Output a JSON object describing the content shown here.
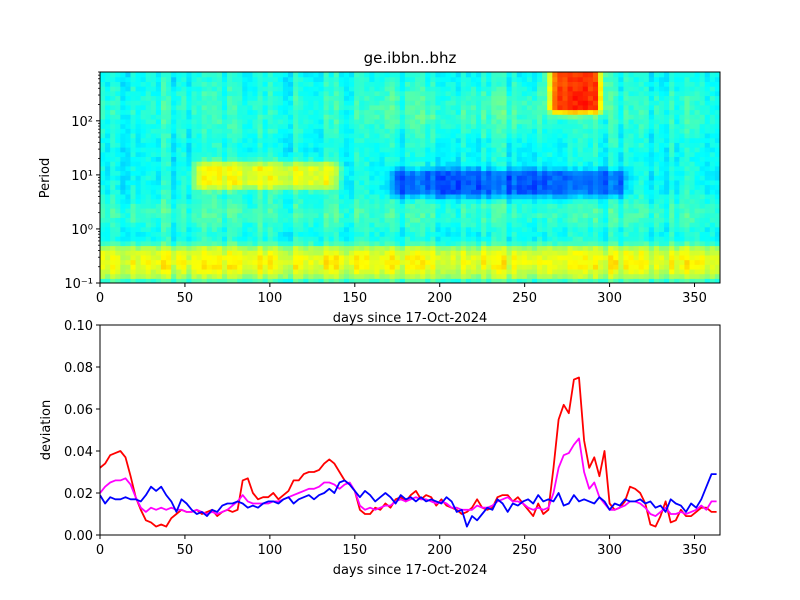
{
  "chart_data": [
    {
      "type": "heatmap",
      "title": "ge.ibbn..bhz",
      "xlabel": "days since 17-Oct-2024",
      "ylabel": "Period",
      "xlim": [
        0,
        365
      ],
      "ylim": [
        0.1,
        800
      ],
      "yscale": "log",
      "xticks": [
        0,
        50,
        100,
        150,
        200,
        250,
        300,
        350
      ],
      "xtick_labels": [
        "0",
        "50",
        "100",
        "150",
        "200",
        "250",
        "300",
        "350"
      ],
      "yticks": [
        0.1,
        1,
        10,
        100
      ],
      "ytick_labels": [
        "10⁻¹",
        "10⁰",
        "10¹",
        "10²"
      ],
      "colormap": "jet",
      "colormap_stops": [
        "#000080",
        "#0000ff",
        "#0080ff",
        "#00ffff",
        "#80ff80",
        "#ffff00",
        "#ff8000",
        "#ff0000",
        "#800000"
      ],
      "color_range": [
        0,
        1
      ],
      "baseline_value": 0.38,
      "features": [
        {
          "desc": "warm band at ~10 s",
          "x": [
            60,
            135
          ],
          "y": [
            7,
            14
          ],
          "value": 0.62
        },
        {
          "desc": "cool band at ~7 s",
          "x": [
            175,
            305
          ],
          "y": [
            5,
            10
          ],
          "value": 0.2
        },
        {
          "desc": "hot spot long period",
          "x": [
            270,
            290
          ],
          "y": [
            180,
            800
          ],
          "value": 0.85
        },
        {
          "desc": "short period yellow band",
          "x": [
            0,
            365
          ],
          "y": [
            0.15,
            0.4
          ],
          "value": 0.55
        }
      ]
    },
    {
      "type": "line",
      "title": "",
      "xlabel": "days since 17-Oct-2024",
      "ylabel": "deviation",
      "xlim": [
        0,
        365
      ],
      "ylim": [
        0.0,
        0.1
      ],
      "xticks": [
        0,
        50,
        100,
        150,
        200,
        250,
        300,
        350
      ],
      "xtick_labels": [
        "0",
        "50",
        "100",
        "150",
        "200",
        "250",
        "300",
        "350"
      ],
      "yticks": [
        0.0,
        0.02,
        0.04,
        0.06,
        0.08,
        0.1
      ],
      "ytick_labels": [
        "0.00",
        "0.02",
        "0.04",
        "0.06",
        "0.08",
        "0.10"
      ],
      "series": [
        {
          "name": "red",
          "color": "#ff0000",
          "x": [
            0,
            3,
            6,
            9,
            12,
            15,
            18,
            21,
            24,
            27,
            30,
            33,
            36,
            39,
            42,
            45,
            48,
            51,
            54,
            57,
            60,
            63,
            66,
            69,
            72,
            75,
            78,
            81,
            84,
            87,
            90,
            93,
            96,
            99,
            102,
            105,
            108,
            111,
            114,
            117,
            120,
            123,
            126,
            129,
            132,
            135,
            138,
            141,
            144,
            147,
            150,
            153,
            156,
            159,
            162,
            165,
            168,
            171,
            174,
            177,
            180,
            183,
            186,
            189,
            192,
            195,
            198,
            201,
            204,
            207,
            210,
            213,
            216,
            219,
            222,
            225,
            228,
            231,
            234,
            237,
            240,
            243,
            246,
            249,
            252,
            255,
            258,
            261,
            264,
            267,
            270,
            273,
            276,
            279,
            282,
            285,
            288,
            291,
            294,
            297,
            300,
            303,
            306,
            309,
            312,
            315,
            318,
            321,
            324,
            327,
            330,
            333,
            336,
            339,
            342,
            345,
            348,
            351,
            354,
            357,
            360,
            363
          ],
          "y": [
            0.032,
            0.034,
            0.038,
            0.039,
            0.04,
            0.037,
            0.028,
            0.018,
            0.012,
            0.007,
            0.006,
            0.004,
            0.005,
            0.004,
            0.008,
            0.01,
            0.012,
            0.011,
            0.011,
            0.012,
            0.01,
            0.011,
            0.012,
            0.009,
            0.011,
            0.012,
            0.011,
            0.012,
            0.026,
            0.027,
            0.02,
            0.017,
            0.018,
            0.018,
            0.02,
            0.017,
            0.019,
            0.021,
            0.026,
            0.026,
            0.029,
            0.03,
            0.03,
            0.031,
            0.034,
            0.036,
            0.034,
            0.03,
            0.026,
            0.024,
            0.021,
            0.012,
            0.01,
            0.01,
            0.013,
            0.012,
            0.015,
            0.013,
            0.017,
            0.018,
            0.016,
            0.019,
            0.021,
            0.017,
            0.019,
            0.018,
            0.014,
            0.017,
            0.014,
            0.013,
            0.012,
            0.01,
            0.011,
            0.013,
            0.017,
            0.013,
            0.012,
            0.013,
            0.018,
            0.019,
            0.019,
            0.016,
            0.018,
            0.015,
            0.012,
            0.009,
            0.015,
            0.01,
            0.012,
            0.032,
            0.055,
            0.062,
            0.058,
            0.074,
            0.075,
            0.045,
            0.032,
            0.037,
            0.028,
            0.04,
            0.015,
            0.012,
            0.013,
            0.016,
            0.023,
            0.022,
            0.02,
            0.015,
            0.005,
            0.004,
            0.009,
            0.016,
            0.006,
            0.007,
            0.012,
            0.009,
            0.009,
            0.011,
            0.013,
            0.013,
            0.011,
            0.011
          ]
        },
        {
          "name": "magenta",
          "color": "#ff00ff",
          "x": [
            0,
            3,
            6,
            9,
            12,
            15,
            18,
            21,
            24,
            27,
            30,
            33,
            36,
            39,
            42,
            45,
            48,
            51,
            54,
            57,
            60,
            63,
            66,
            69,
            72,
            75,
            78,
            81,
            84,
            87,
            90,
            93,
            96,
            99,
            102,
            105,
            108,
            111,
            114,
            117,
            120,
            123,
            126,
            129,
            132,
            135,
            138,
            141,
            144,
            147,
            150,
            153,
            156,
            159,
            162,
            165,
            168,
            171,
            174,
            177,
            180,
            183,
            186,
            189,
            192,
            195,
            198,
            201,
            204,
            207,
            210,
            213,
            216,
            219,
            222,
            225,
            228,
            231,
            234,
            237,
            240,
            243,
            246,
            249,
            252,
            255,
            258,
            261,
            264,
            267,
            270,
            273,
            276,
            279,
            282,
            285,
            288,
            291,
            294,
            297,
            300,
            303,
            306,
            309,
            312,
            315,
            318,
            321,
            324,
            327,
            330,
            333,
            336,
            339,
            342,
            345,
            348,
            351,
            354,
            357,
            360,
            363
          ],
          "y": [
            0.02,
            0.023,
            0.025,
            0.026,
            0.026,
            0.027,
            0.024,
            0.018,
            0.013,
            0.011,
            0.013,
            0.012,
            0.013,
            0.012,
            0.013,
            0.012,
            0.012,
            0.011,
            0.011,
            0.012,
            0.011,
            0.01,
            0.011,
            0.01,
            0.011,
            0.012,
            0.014,
            0.016,
            0.019,
            0.016,
            0.015,
            0.015,
            0.015,
            0.015,
            0.016,
            0.016,
            0.017,
            0.018,
            0.019,
            0.02,
            0.021,
            0.022,
            0.022,
            0.023,
            0.025,
            0.025,
            0.024,
            0.022,
            0.024,
            0.025,
            0.021,
            0.014,
            0.012,
            0.013,
            0.012,
            0.013,
            0.014,
            0.014,
            0.016,
            0.017,
            0.016,
            0.017,
            0.018,
            0.017,
            0.017,
            0.016,
            0.015,
            0.016,
            0.015,
            0.013,
            0.013,
            0.012,
            0.012,
            0.012,
            0.014,
            0.013,
            0.013,
            0.014,
            0.016,
            0.017,
            0.018,
            0.016,
            0.016,
            0.015,
            0.013,
            0.012,
            0.013,
            0.012,
            0.013,
            0.02,
            0.032,
            0.038,
            0.039,
            0.043,
            0.046,
            0.03,
            0.022,
            0.025,
            0.018,
            0.015,
            0.012,
            0.012,
            0.013,
            0.014,
            0.016,
            0.016,
            0.015,
            0.013,
            0.01,
            0.009,
            0.011,
            0.013,
            0.01,
            0.01,
            0.011,
            0.01,
            0.011,
            0.012,
            0.014,
            0.012,
            0.016,
            0.016
          ]
        },
        {
          "name": "blue",
          "color": "#0000ff",
          "x": [
            0,
            3,
            6,
            9,
            12,
            15,
            18,
            21,
            24,
            27,
            30,
            33,
            36,
            39,
            42,
            45,
            48,
            51,
            54,
            57,
            60,
            63,
            66,
            69,
            72,
            75,
            78,
            81,
            84,
            87,
            90,
            93,
            96,
            99,
            102,
            105,
            108,
            111,
            114,
            117,
            120,
            123,
            126,
            129,
            132,
            135,
            138,
            141,
            144,
            147,
            150,
            153,
            156,
            159,
            162,
            165,
            168,
            171,
            174,
            177,
            180,
            183,
            186,
            189,
            192,
            195,
            198,
            201,
            204,
            207,
            210,
            213,
            216,
            219,
            222,
            225,
            228,
            231,
            234,
            237,
            240,
            243,
            246,
            249,
            252,
            255,
            258,
            261,
            264,
            267,
            270,
            273,
            276,
            279,
            282,
            285,
            288,
            291,
            294,
            297,
            300,
            303,
            306,
            309,
            312,
            315,
            318,
            321,
            324,
            327,
            330,
            333,
            336,
            339,
            342,
            345,
            348,
            351,
            354,
            357,
            360,
            363
          ],
          "y": [
            0.019,
            0.015,
            0.018,
            0.017,
            0.017,
            0.018,
            0.017,
            0.017,
            0.016,
            0.019,
            0.023,
            0.021,
            0.023,
            0.019,
            0.016,
            0.011,
            0.017,
            0.015,
            0.012,
            0.01,
            0.011,
            0.009,
            0.012,
            0.011,
            0.014,
            0.015,
            0.015,
            0.016,
            0.015,
            0.013,
            0.014,
            0.013,
            0.015,
            0.016,
            0.016,
            0.015,
            0.017,
            0.018,
            0.015,
            0.017,
            0.018,
            0.019,
            0.017,
            0.019,
            0.02,
            0.022,
            0.02,
            0.025,
            0.026,
            0.024,
            0.021,
            0.018,
            0.021,
            0.019,
            0.016,
            0.018,
            0.02,
            0.018,
            0.015,
            0.019,
            0.017,
            0.018,
            0.016,
            0.018,
            0.016,
            0.017,
            0.016,
            0.015,
            0.018,
            0.016,
            0.011,
            0.012,
            0.004,
            0.009,
            0.007,
            0.01,
            0.013,
            0.012,
            0.017,
            0.015,
            0.011,
            0.015,
            0.014,
            0.016,
            0.017,
            0.015,
            0.019,
            0.016,
            0.017,
            0.016,
            0.02,
            0.014,
            0.015,
            0.019,
            0.016,
            0.017,
            0.016,
            0.015,
            0.018,
            0.016,
            0.012,
            0.015,
            0.014,
            0.017,
            0.016,
            0.016,
            0.017,
            0.015,
            0.016,
            0.013,
            0.014,
            0.011,
            0.017,
            0.015,
            0.014,
            0.011,
            0.015,
            0.013,
            0.017,
            0.023,
            0.029,
            0.029
          ]
        }
      ]
    }
  ]
}
